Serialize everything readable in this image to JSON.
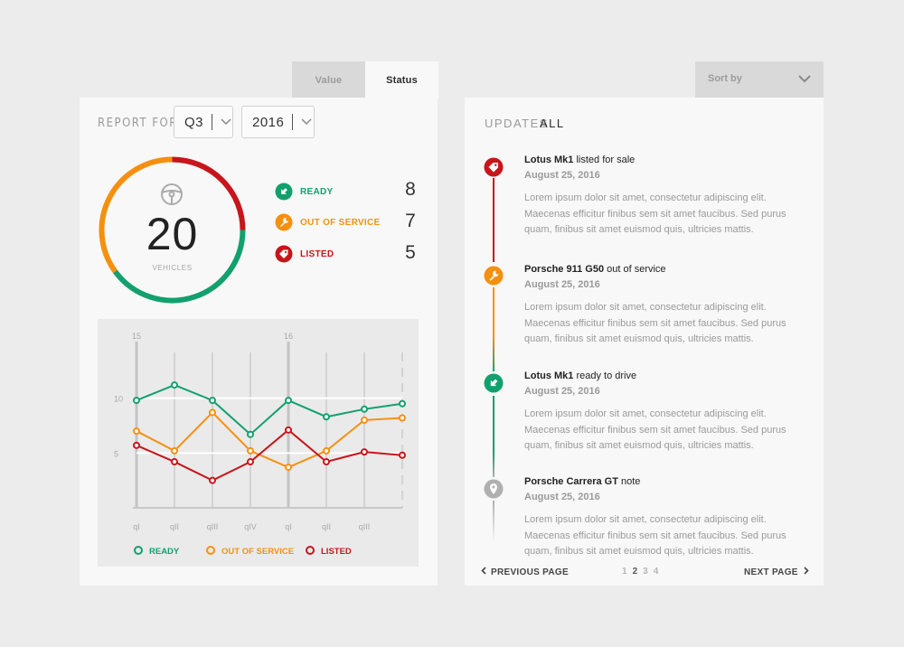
{
  "tabs": {
    "value_label": "Value",
    "status_label": "Status"
  },
  "report": {
    "label": "REPORT FOR",
    "quarter": "Q3",
    "year": "2016"
  },
  "vehicles": {
    "count": "20",
    "label": "VEHICLES",
    "statuses": [
      {
        "label": "READY",
        "count": "8",
        "color": "#12a06e"
      },
      {
        "label": "OUT OF SERVICE",
        "count": "7",
        "color": "#f5900f"
      },
      {
        "label": "LISTED",
        "count": "5",
        "color": "#c8151b"
      }
    ]
  },
  "chart_data": {
    "type": "line",
    "categories": [
      "qI",
      "qII",
      "qIII",
      "qIV",
      "qI",
      "qII",
      "qIII",
      ""
    ],
    "year_labels": [
      {
        "index": 0,
        "label": "15"
      },
      {
        "index": 4,
        "label": "16"
      }
    ],
    "y_ticks": [
      5,
      10
    ],
    "ylim": [
      0,
      15
    ],
    "series": [
      {
        "name": "READY",
        "color": "#12a06e",
        "values": [
          9.8,
          11.2,
          9.8,
          6.7,
          9.8,
          8.3,
          9.0,
          9.5
        ]
      },
      {
        "name": "OUT OF SERVICE",
        "color": "#f5900f",
        "values": [
          7.0,
          5.2,
          8.7,
          5.2,
          3.7,
          5.2,
          8.0,
          8.2
        ]
      },
      {
        "name": "LISTED",
        "color": "#c8151b",
        "values": [
          5.7,
          4.2,
          2.5,
          4.2,
          7.1,
          4.2,
          5.1,
          4.8
        ]
      }
    ],
    "legend_position": "bottom",
    "grid": true
  },
  "updates": {
    "label": "UPDATES",
    "filter": "ALL",
    "sort_label": "Sort by",
    "items": [
      {
        "title_bold": "Lotus Mk1",
        "title_rest": " listed for sale",
        "date": "August 25, 2016",
        "body": "Lorem ipsum dolor sit amet, consectetur adipiscing elit. Maecenas efficitur finibus sem sit amet faucibus. Sed purus quam, finibus sit amet euismod quis, ultricies mattis.",
        "status": "listed"
      },
      {
        "title_bold": "Porsche 911 G50",
        "title_rest": " out of service",
        "date": "August 25, 2016",
        "body": "Lorem ipsum dolor sit amet, consectetur adipiscing elit. Maecenas efficitur finibus sem sit amet faucibus. Sed purus quam, finibus sit amet euismod quis, ultricies mattis.",
        "status": "out-of-service"
      },
      {
        "title_bold": "Lotus Mk1",
        "title_rest": " ready to drive",
        "date": "August 25, 2016",
        "body": "Lorem ipsum dolor sit amet, consectetur adipiscing elit. Maecenas efficitur finibus sem sit amet faucibus. Sed purus quam, finibus sit amet euismod quis, ultricies mattis.",
        "status": "ready"
      },
      {
        "title_bold": "Porsche Carrera GT",
        "title_rest": " note",
        "date": "August 25, 2016",
        "body": "Lorem ipsum dolor sit amet, consectetur adipiscing elit. Maecenas efficitur finibus sem sit amet faucibus. Sed purus quam, finibus sit amet euismod quis, ultricies mattis.",
        "status": "note"
      }
    ]
  },
  "pagination": {
    "prev_label": "PREVIOUS PAGE",
    "next_label": "NEXT PAGE",
    "pages": [
      "1",
      "2",
      "3",
      "4"
    ],
    "current": "2"
  },
  "colors": {
    "ready": "#12a06e",
    "out_of_service": "#f5900f",
    "listed": "#c8151b",
    "note": "#b0b0b0"
  }
}
